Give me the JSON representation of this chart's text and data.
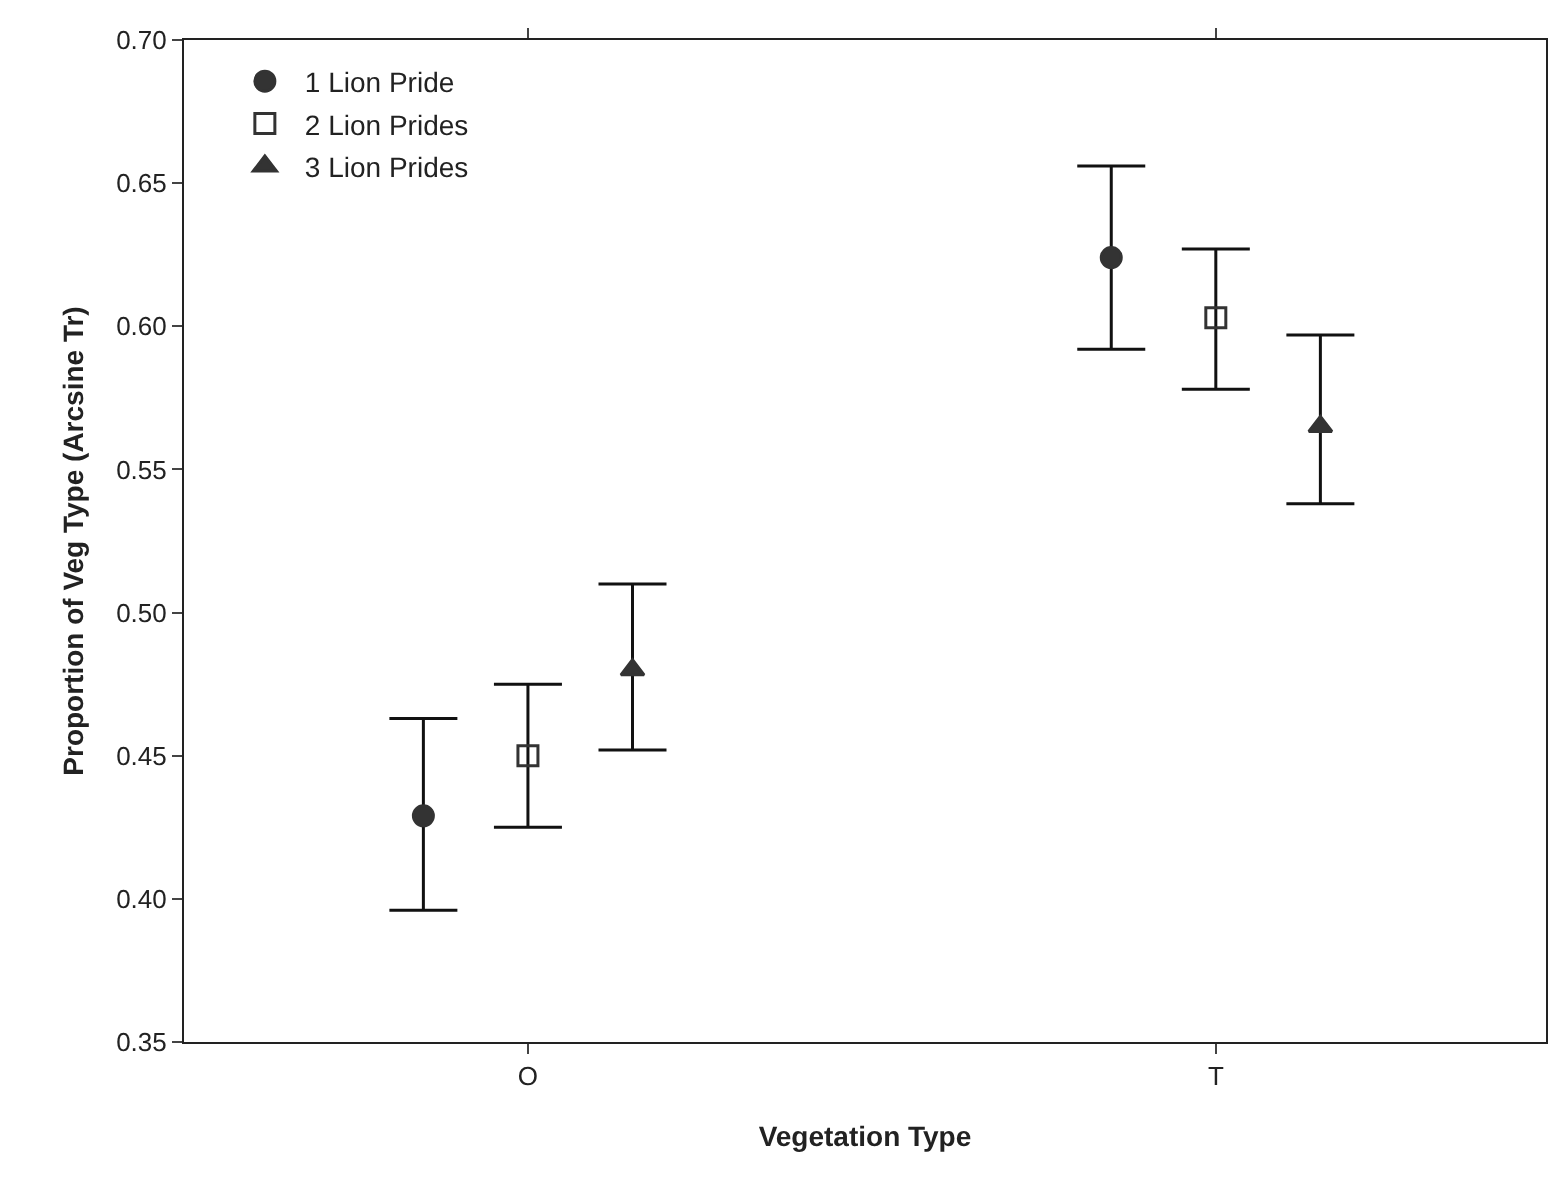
{
  "chart_data": {
    "type": "scatter",
    "xlabel": "Vegetation Type",
    "ylabel": "Proportion of Veg Type (Arcsine Tr)",
    "categories": [
      "O",
      "T"
    ],
    "series": [
      {
        "name": "1 Lion Pride",
        "color": "#333333",
        "marker": "circle",
        "values": [
          0.429,
          0.624
        ],
        "errors": [
          [
            0.396,
            0.463
          ],
          [
            0.592,
            0.656
          ]
        ]
      },
      {
        "name": "2 Lion Prides",
        "color": "#333333",
        "marker": "square",
        "values": [
          0.45,
          0.603
        ],
        "errors": [
          [
            0.425,
            0.475
          ],
          [
            0.578,
            0.627
          ]
        ]
      },
      {
        "name": "3 Lion Prides",
        "color": "#333333",
        "marker": "triangle",
        "values": [
          0.48,
          0.565
        ],
        "errors": [
          [
            0.452,
            0.51
          ],
          [
            0.538,
            0.597
          ]
        ]
      }
    ],
    "ylim": [
      0.35,
      0.7
    ],
    "yticks": [
      {
        "value": 0.35,
        "label": "0.35"
      },
      {
        "value": 0.4,
        "label": "0.40"
      },
      {
        "value": 0.45,
        "label": "0.45"
      },
      {
        "value": 0.5,
        "label": "0.50"
      },
      {
        "value": 0.55,
        "label": "0.55"
      },
      {
        "value": 0.6,
        "label": "0.60"
      },
      {
        "value": 0.65,
        "label": "0.65"
      },
      {
        "value": 0.7,
        "label": "0.70"
      }
    ],
    "grid": false,
    "legend": "top left"
  }
}
